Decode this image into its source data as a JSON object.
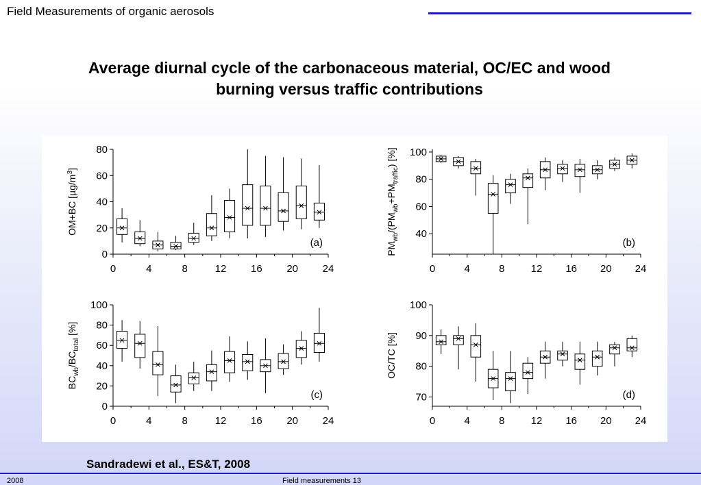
{
  "header": {
    "title": "Field Measurements of organic aerosols"
  },
  "slide": {
    "title_line1": "Average diurnal cycle of the carbonaceous material, OC/EC and wood",
    "title_line2": "burning versus traffic contributions"
  },
  "citation": "Sandradewi et al., ES&T,  2008",
  "footer": {
    "left": "2008",
    "center": "Field measurements 13"
  },
  "colors": {
    "accent": "#1c1cc8",
    "plot_ink": "#000000"
  },
  "chart_data": [
    {
      "type": "box",
      "panel_label": "(a)",
      "ylabel_parts": [
        "OM+BC [µg/m",
        "3",
        "]"
      ],
      "xticks": [
        0,
        4,
        8,
        12,
        16,
        20,
        24
      ],
      "yticks": [
        0,
        20,
        40,
        60,
        80
      ],
      "xlim": [
        0,
        24
      ],
      "ylim": [
        0,
        80
      ],
      "boxes": [
        {
          "x": 1,
          "min": 9,
          "q1": 15,
          "median": 20,
          "q3": 27,
          "max": 35
        },
        {
          "x": 3,
          "min": 6,
          "q1": 8,
          "median": 12,
          "q3": 17,
          "max": 26
        },
        {
          "x": 5,
          "min": 2,
          "q1": 4,
          "median": 7,
          "q3": 10,
          "max": 17
        },
        {
          "x": 7,
          "min": 3,
          "q1": 4,
          "median": 6,
          "q3": 9,
          "max": 14
        },
        {
          "x": 9,
          "min": 7,
          "q1": 9,
          "median": 12,
          "q3": 16,
          "max": 24
        },
        {
          "x": 11,
          "min": 10,
          "q1": 14,
          "median": 20,
          "q3": 31,
          "max": 45
        },
        {
          "x": 13,
          "min": 12,
          "q1": 17,
          "median": 28,
          "q3": 41,
          "max": 50
        },
        {
          "x": 15,
          "min": 12,
          "q1": 22,
          "median": 35,
          "q3": 53,
          "max": 80
        },
        {
          "x": 17,
          "min": 13,
          "q1": 22,
          "median": 35,
          "q3": 52,
          "max": 75
        },
        {
          "x": 19,
          "min": 18,
          "q1": 25,
          "median": 33,
          "q3": 47,
          "max": 74
        },
        {
          "x": 21,
          "min": 19,
          "q1": 27,
          "median": 37,
          "q3": 52,
          "max": 73
        },
        {
          "x": 23,
          "min": 20,
          "q1": 26,
          "median": 32,
          "q3": 39,
          "max": 68
        }
      ]
    },
    {
      "type": "box",
      "panel_label": "(b)",
      "ylabel_parts": [
        "PM",
        "wb",
        "/(PM",
        "wb",
        "+PM",
        "traffic",
        ") [%]"
      ],
      "xticks": [
        0,
        4,
        8,
        12,
        16,
        20,
        24
      ],
      "yticks": [
        40,
        60,
        80,
        100
      ],
      "xlim": [
        0,
        24
      ],
      "ylim": [
        25,
        102
      ],
      "boxes": [
        {
          "x": 1,
          "min": 92,
          "q1": 93,
          "median": 95,
          "q3": 97,
          "max": 98
        },
        {
          "x": 3,
          "min": 88,
          "q1": 90,
          "median": 93,
          "q3": 96,
          "max": 97
        },
        {
          "x": 5,
          "min": 68,
          "q1": 84,
          "median": 88,
          "q3": 93,
          "max": 95
        },
        {
          "x": 7,
          "min": 25,
          "q1": 55,
          "median": 69,
          "q3": 77,
          "max": 83
        },
        {
          "x": 9,
          "min": 62,
          "q1": 70,
          "median": 76,
          "q3": 80,
          "max": 84
        },
        {
          "x": 11,
          "min": 47,
          "q1": 74,
          "median": 81,
          "q3": 84,
          "max": 88
        },
        {
          "x": 13,
          "min": 72,
          "q1": 81,
          "median": 87,
          "q3": 93,
          "max": 96
        },
        {
          "x": 15,
          "min": 78,
          "q1": 84,
          "median": 88,
          "q3": 91,
          "max": 94
        },
        {
          "x": 17,
          "min": 70,
          "q1": 82,
          "median": 87,
          "q3": 91,
          "max": 95
        },
        {
          "x": 19,
          "min": 80,
          "q1": 84,
          "median": 87,
          "q3": 90,
          "max": 94
        },
        {
          "x": 21,
          "min": 86,
          "q1": 88,
          "median": 91,
          "q3": 94,
          "max": 96
        },
        {
          "x": 23,
          "min": 88,
          "q1": 91,
          "median": 94,
          "q3": 97,
          "max": 99
        }
      ]
    },
    {
      "type": "box",
      "panel_label": "(c)",
      "ylabel_parts": [
        "BC",
        "wb",
        "/BC",
        "total",
        " [%]"
      ],
      "xticks": [
        0,
        4,
        8,
        12,
        16,
        20,
        24
      ],
      "yticks": [
        0,
        20,
        40,
        60,
        80,
        100
      ],
      "xlim": [
        0,
        24
      ],
      "ylim": [
        0,
        100
      ],
      "boxes": [
        {
          "x": 1,
          "min": 44,
          "q1": 57,
          "median": 65,
          "q3": 74,
          "max": 85
        },
        {
          "x": 3,
          "min": 37,
          "q1": 48,
          "median": 62,
          "q3": 71,
          "max": 84
        },
        {
          "x": 5,
          "min": 10,
          "q1": 31,
          "median": 41,
          "q3": 54,
          "max": 79
        },
        {
          "x": 7,
          "min": 3,
          "q1": 14,
          "median": 21,
          "q3": 30,
          "max": 41
        },
        {
          "x": 9,
          "min": 15,
          "q1": 22,
          "median": 28,
          "q3": 33,
          "max": 44
        },
        {
          "x": 11,
          "min": 15,
          "q1": 25,
          "median": 34,
          "q3": 41,
          "max": 55
        },
        {
          "x": 13,
          "min": 24,
          "q1": 33,
          "median": 45,
          "q3": 54,
          "max": 69
        },
        {
          "x": 15,
          "min": 26,
          "q1": 35,
          "median": 44,
          "q3": 51,
          "max": 64
        },
        {
          "x": 17,
          "min": 13,
          "q1": 34,
          "median": 40,
          "q3": 46,
          "max": 67
        },
        {
          "x": 19,
          "min": 31,
          "q1": 37,
          "median": 44,
          "q3": 52,
          "max": 61
        },
        {
          "x": 21,
          "min": 41,
          "q1": 48,
          "median": 57,
          "q3": 65,
          "max": 74
        },
        {
          "x": 23,
          "min": 44,
          "q1": 53,
          "median": 62,
          "q3": 72,
          "max": 97
        }
      ]
    },
    {
      "type": "box",
      "panel_label": "(d)",
      "ylabel_parts": [
        "OC/TC [%]"
      ],
      "xticks": [
        0,
        4,
        8,
        12,
        16,
        20,
        24
      ],
      "yticks": [
        70,
        80,
        90,
        100
      ],
      "xlim": [
        0,
        24
      ],
      "ylim": [
        67,
        100
      ],
      "boxes": [
        {
          "x": 1,
          "min": 84,
          "q1": 87,
          "median": 88,
          "q3": 90,
          "max": 92
        },
        {
          "x": 3,
          "min": 79,
          "q1": 87,
          "median": 89,
          "q3": 90,
          "max": 93
        },
        {
          "x": 5,
          "min": 75,
          "q1": 83,
          "median": 87,
          "q3": 90,
          "max": 94
        },
        {
          "x": 7,
          "min": 69,
          "q1": 73,
          "median": 76,
          "q3": 79,
          "max": 85
        },
        {
          "x": 9,
          "min": 68,
          "q1": 72,
          "median": 76,
          "q3": 78,
          "max": 85
        },
        {
          "x": 11,
          "min": 71,
          "q1": 76,
          "median": 78,
          "q3": 81,
          "max": 83
        },
        {
          "x": 13,
          "min": 76,
          "q1": 81,
          "median": 83,
          "q3": 85,
          "max": 88
        },
        {
          "x": 15,
          "min": 80,
          "q1": 82,
          "median": 84,
          "q3": 85,
          "max": 88
        },
        {
          "x": 17,
          "min": 74,
          "q1": 79,
          "median": 82,
          "q3": 84,
          "max": 88
        },
        {
          "x": 19,
          "min": 77,
          "q1": 80,
          "median": 83,
          "q3": 85,
          "max": 88
        },
        {
          "x": 21,
          "min": 80,
          "q1": 84,
          "median": 86,
          "q3": 87,
          "max": 88
        },
        {
          "x": 23,
          "min": 83,
          "q1": 85,
          "median": 86,
          "q3": 89,
          "max": 90
        }
      ]
    }
  ]
}
